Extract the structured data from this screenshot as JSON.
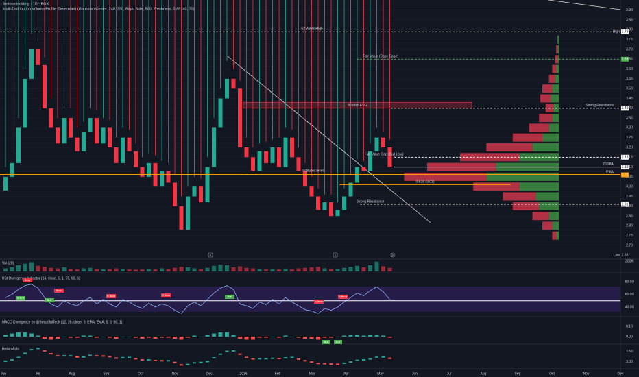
{
  "chart_data": [
    {
      "type": "candlestick",
      "title": "Beltone Holding · 1D · EGX",
      "subtitle": "Multi-Distribution Volume Profile (Determan) (Gaussian Center, 240, 250, Right Side, 500, Freshness, 0.99, 40, 70)",
      "up_color": "#22ab94",
      "down_color": "#f23645",
      "open": [
        2.98,
        3.05,
        3.12,
        3.3,
        3.55,
        3.7,
        3.62,
        3.4,
        3.3,
        3.22,
        3.35,
        3.25,
        3.18,
        3.28,
        3.35,
        3.22,
        3.3,
        3.2,
        3.12,
        3.25,
        3.18,
        3.1,
        3.05,
        3.12,
        3.0,
        3.08,
        3.02,
        2.9,
        2.78,
        2.95,
        3.0,
        2.92,
        3.1,
        3.3,
        3.45,
        3.55,
        3.5,
        3.2,
        3.15,
        3.08,
        3.18,
        3.12,
        3.2,
        3.1,
        3.25,
        3.15,
        3.08,
        3.0,
        2.95,
        2.88,
        2.92,
        2.85,
        2.88,
        2.95,
        3.02,
        3.1,
        3.08,
        3.18,
        3.25,
        3.2
      ],
      "high": [
        3.1,
        3.17,
        3.35,
        3.6,
        3.78,
        3.74,
        3.66,
        3.45,
        3.35,
        3.4,
        3.4,
        3.3,
        3.33,
        3.4,
        3.39,
        3.35,
        3.34,
        3.25,
        3.3,
        3.29,
        3.22,
        3.15,
        3.17,
        3.16,
        3.13,
        3.12,
        3.06,
        2.95,
        3.0,
        3.05,
        3.04,
        3.15,
        3.35,
        3.5,
        3.64,
        3.6,
        3.54,
        3.25,
        3.2,
        3.22,
        3.23,
        3.24,
        3.25,
        3.3,
        3.29,
        3.2,
        3.12,
        3.05,
        2.99,
        2.96,
        2.96,
        2.92,
        2.99,
        3.06,
        3.14,
        3.13,
        3.22,
        3.3,
        3.28,
        3.24
      ],
      "low": {
        "tag": "Low",
        "value": 2.65
      },
      "close": [
        3.05,
        3.12,
        3.3,
        3.55,
        3.7,
        3.62,
        3.4,
        3.3,
        3.22,
        3.35,
        3.25,
        3.18,
        3.28,
        3.35,
        3.22,
        3.3,
        3.2,
        3.12,
        3.25,
        3.18,
        3.1,
        3.05,
        3.12,
        3.0,
        3.08,
        3.02,
        2.9,
        2.78,
        2.95,
        3.0,
        2.92,
        3.1,
        3.3,
        3.45,
        3.55,
        3.5,
        3.2,
        3.15,
        3.08,
        3.18,
        3.12,
        3.2,
        3.1,
        3.25,
        3.15,
        3.08,
        3.0,
        2.95,
        2.88,
        2.92,
        2.85,
        2.88,
        2.95,
        3.02,
        3.1,
        3.08,
        3.18,
        3.25,
        3.2,
        3.1
      ],
      "time_axis": [
        "Jun",
        "Jul",
        "Aug",
        "Sep",
        "Oct",
        "Nov",
        "Dec",
        "2026",
        "Feb",
        "Mar",
        "Apr",
        "May",
        "Jun",
        "Jul",
        "Aug",
        "Sep",
        "Oct",
        "Nov",
        "Dec"
      ],
      "ylim": [
        2.7,
        3.9
      ],
      "yticks": [
        {
          "value": 2.7,
          "label": "2.70"
        },
        {
          "value": 2.75,
          "label": "2.75"
        },
        {
          "value": 2.8,
          "label": "2.80"
        },
        {
          "value": 2.85,
          "label": "2.85"
        },
        {
          "value": 2.9,
          "label": "2.90"
        },
        {
          "value": 2.95,
          "label": "2.95"
        },
        {
          "value": 3.0,
          "label": "3.00"
        },
        {
          "value": 3.05,
          "label": "3.05"
        },
        {
          "value": 3.1,
          "label": "3.10"
        },
        {
          "value": 3.15,
          "label": "3.15"
        },
        {
          "value": 3.2,
          "label": "3.20"
        },
        {
          "value": 3.25,
          "label": "3.25"
        },
        {
          "value": 3.3,
          "label": "3.30"
        },
        {
          "value": 3.35,
          "label": "3.35"
        },
        {
          "value": 3.4,
          "label": "3.40"
        },
        {
          "value": 3.45,
          "label": "3.45"
        },
        {
          "value": 3.5,
          "label": "3.50"
        },
        {
          "value": 3.55,
          "label": "3.55"
        },
        {
          "value": 3.6,
          "label": "3.60"
        },
        {
          "value": 3.65,
          "label": "3.65"
        },
        {
          "value": 3.7,
          "label": "3.70"
        },
        {
          "value": 3.75,
          "label": "3.75"
        },
        {
          "value": 3.8,
          "label": "3.80"
        },
        {
          "value": 3.85,
          "label": "3.85"
        },
        {
          "value": 3.9,
          "label": "3.90"
        }
      ],
      "grid": true,
      "levels": [
        {
          "label": "52 Week High",
          "value": 3.79,
          "tag": "High",
          "color": "#ffffff"
        },
        {
          "label": "Fair Value (Base Case)",
          "value": 3.65,
          "color": "#4caf50"
        },
        {
          "label": "Strong Resistance",
          "value": 3.4,
          "value_label": "3.40",
          "color": "#ffffff"
        },
        {
          "label": "Fair Value Gap (Bull Low)",
          "value": 3.15,
          "color": "#ffffff"
        },
        {
          "label": "200MA",
          "value": 3.1,
          "value_label": "3.10",
          "color": "#ffffff"
        },
        {
          "label": "EMA",
          "value": 3.06,
          "color": "#ff9800"
        },
        {
          "label": "0.618 (3.01)",
          "value": 3.01,
          "color": "#ff9800"
        },
        {
          "label": "Strong Resistance",
          "value": 2.91,
          "color": "#ffffff"
        }
      ],
      "fvg": {
        "label": "Bearish FVG",
        "low": 3.4,
        "high": 3.43,
        "color": "#f23645"
      },
      "annotation": "Institutes level",
      "event_markers": [
        "E",
        "E",
        "D"
      ],
      "profile": {
        "prices": [
          2.75,
          2.8,
          2.85,
          2.9,
          2.95,
          3.0,
          3.05,
          3.1,
          3.15,
          3.2,
          3.25,
          3.3,
          3.35,
          3.4,
          3.45,
          3.5,
          3.55,
          3.6,
          3.65,
          3.7,
          3.75
        ],
        "xlim": [
          0,
          250
        ],
        "series": [
          {
            "color": "#43a047",
            "values": [
              4,
              10,
              15,
              30,
              35,
              60,
              110,
              95,
              60,
              40,
              25,
              15,
              10,
              8,
              12,
              10,
              6,
              4,
              2,
              2,
              1
            ]
          },
          {
            "color": "#e53950",
            "values": [
              6,
              15,
              25,
              40,
              50,
              70,
              125,
              105,
              90,
              70,
              45,
              30,
              20,
              12,
              16,
              15,
              9,
              6,
              4,
              2,
              1
            ]
          }
        ]
      }
    },
    {
      "type": "bar",
      "title": "Vol (20)",
      "values": [
        60000,
        80000,
        120000,
        150000,
        180000,
        110000,
        90000,
        70000,
        60000,
        80000,
        50000,
        45000,
        60000,
        70000,
        50000,
        40000,
        45000,
        60000,
        50000,
        40000,
        35000,
        40000,
        50000,
        45000,
        60000,
        50000,
        70000,
        90000,
        80000,
        60000,
        50000,
        70000,
        110000,
        130000,
        120000,
        80000,
        100000,
        70000,
        60000,
        50000,
        45000,
        50000,
        40000,
        55000,
        45000,
        60000,
        70000,
        80000,
        90000,
        60000,
        55000,
        50000,
        70000,
        90000,
        110000,
        80000,
        120000,
        190000,
        100000,
        70000
      ],
      "ylim": [
        0,
        200000
      ],
      "yticks": [
        {
          "value": 200000,
          "label": "200K"
        }
      ]
    },
    {
      "type": "line",
      "title": "RSI Divergence Indicator (14, close, 5, 1, 75, 60, 5)",
      "color": "#8fb8ff",
      "values": [
        55,
        60,
        68,
        74,
        76,
        70,
        55,
        45,
        40,
        50,
        45,
        42,
        50,
        55,
        45,
        52,
        45,
        40,
        52,
        48,
        42,
        38,
        46,
        40,
        45,
        42,
        35,
        30,
        42,
        48,
        42,
        52,
        62,
        70,
        74,
        68,
        45,
        42,
        38,
        48,
        44,
        52,
        45,
        55,
        48,
        42,
        36,
        34,
        30,
        38,
        35,
        40,
        48,
        55,
        62,
        58,
        66,
        72,
        64,
        52
      ],
      "midline": 50,
      "ylim": [
        30,
        90
      ],
      "yticks": [
        {
          "value": 40,
          "label": "40.00"
        },
        {
          "value": 60,
          "label": "60.00"
        },
        {
          "value": 80,
          "label": "80.00"
        }
      ],
      "signals": [
        "Bear",
        "H Bull",
        "Bull",
        "Bear",
        "H Bear",
        "H Bear",
        "Bull",
        "H Bear",
        "H Bear"
      ]
    },
    {
      "type": "histogram",
      "title": "MACD Divergence by @BeautifulTech (12, 26, close, 9, EMA, EMA, 5, 5, 60, 1)",
      "up_color": "#26a69a",
      "down_color": "#ef5350",
      "values": [
        0.02,
        0.03,
        0.04,
        0.04,
        0.03,
        0.01,
        -0.02,
        -0.03,
        -0.02,
        0.0,
        -0.01,
        -0.01,
        0.01,
        0.01,
        -0.01,
        0.0,
        -0.01,
        -0.02,
        0.0,
        0.0,
        -0.01,
        -0.02,
        -0.01,
        -0.02,
        -0.01,
        -0.01,
        -0.02,
        -0.03,
        -0.01,
        0.01,
        0.0,
        0.02,
        0.03,
        0.04,
        0.04,
        0.02,
        -0.02,
        -0.03,
        -0.03,
        -0.01,
        -0.01,
        0.0,
        -0.01,
        0.01,
        0.0,
        -0.01,
        -0.02,
        -0.02,
        -0.03,
        -0.01,
        -0.01,
        0.0,
        0.01,
        0.02,
        0.02,
        0.01,
        0.02,
        0.02,
        0.01,
        -0.01
      ],
      "ylim": [
        -0.06,
        0.14
      ],
      "yticks": [
        {
          "value": 0,
          "label": "0.00"
        },
        {
          "value": 0.1,
          "label": "0.10"
        }
      ],
      "signals": [
        "Bull",
        "Bull"
      ]
    },
    {
      "type": "dots",
      "title": "Heikin Ashi",
      "up_color": "#26a69a",
      "down_color": "#ef5350",
      "values": [
        3.02,
        3.08,
        3.2,
        3.4,
        3.58,
        3.64,
        3.52,
        3.38,
        3.28,
        3.28,
        3.28,
        3.22,
        3.22,
        3.3,
        3.28,
        3.27,
        3.24,
        3.17,
        3.19,
        3.2,
        3.14,
        3.08,
        3.08,
        3.05,
        3.04,
        3.04,
        2.96,
        2.84,
        2.86,
        2.94,
        2.96,
        3.0,
        3.18,
        3.36,
        3.5,
        3.52,
        3.36,
        3.2,
        3.13,
        3.14,
        3.14,
        3.16,
        3.15,
        3.18,
        3.2,
        3.12,
        3.04,
        2.98,
        2.91,
        2.9,
        2.88,
        2.87,
        2.92,
        2.98,
        3.06,
        3.08,
        3.13,
        3.21,
        3.22,
        3.16
      ],
      "ylim": [
        2.75,
        3.75
      ],
      "yticks": [
        {
          "value": 3.0,
          "label": "3.00"
        },
        {
          "value": 3.5,
          "label": "3.50"
        }
      ]
    }
  ]
}
